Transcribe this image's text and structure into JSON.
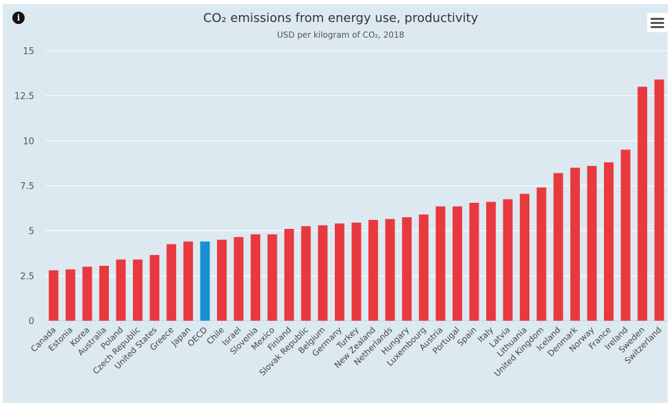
{
  "title": "CO₂ emissions from energy use, productivity",
  "subtitle": "USD per kilogram of CO₂, 2018",
  "info_icon": "info-icon",
  "menu_icon": "hamburger-menu-icon",
  "colors": {
    "bar": "#e8393f",
    "highlight": "#1a8fd6",
    "grid": "#ffffff",
    "background": "#dde9f1"
  },
  "chart_data": {
    "type": "bar",
    "title": "CO₂ emissions from energy use, productivity",
    "subtitle": "USD per kilogram of CO₂, 2018",
    "xlabel": "",
    "ylabel": "",
    "ylim": [
      0,
      15
    ],
    "yticks": [
      0,
      2.5,
      5,
      7.5,
      10,
      12.5,
      15
    ],
    "ytick_labels": [
      "0",
      "2.5",
      "5",
      "7.5",
      "10",
      "12.5",
      "15"
    ],
    "grid": true,
    "highlight_category": "OECD",
    "categories": [
      "Canada",
      "Estonia",
      "Korea",
      "Australia",
      "Poland",
      "Czech Republic",
      "United States",
      "Greece",
      "Japan",
      "OECD",
      "Chile",
      "Israel",
      "Slovenia",
      "Mexico",
      "Finland",
      "Slovak Republic",
      "Belgium",
      "Germany",
      "Turkey",
      "New Zealand",
      "Netherlands",
      "Hungary",
      "Luxembourg",
      "Austria",
      "Portugal",
      "Spain",
      "Italy",
      "Latvia",
      "Lithuania",
      "United Kingdom",
      "Iceland",
      "Denmark",
      "Norway",
      "France",
      "Ireland",
      "Sweden",
      "Switzerland"
    ],
    "values": [
      2.8,
      2.85,
      3.0,
      3.05,
      3.4,
      3.4,
      3.65,
      4.25,
      4.4,
      4.4,
      4.5,
      4.65,
      4.8,
      4.8,
      5.1,
      5.25,
      5.3,
      5.4,
      5.45,
      5.6,
      5.65,
      5.75,
      5.9,
      6.35,
      6.35,
      6.55,
      6.6,
      6.75,
      7.05,
      7.4,
      8.2,
      8.5,
      8.6,
      8.8,
      9.5,
      13.0,
      13.4
    ]
  }
}
